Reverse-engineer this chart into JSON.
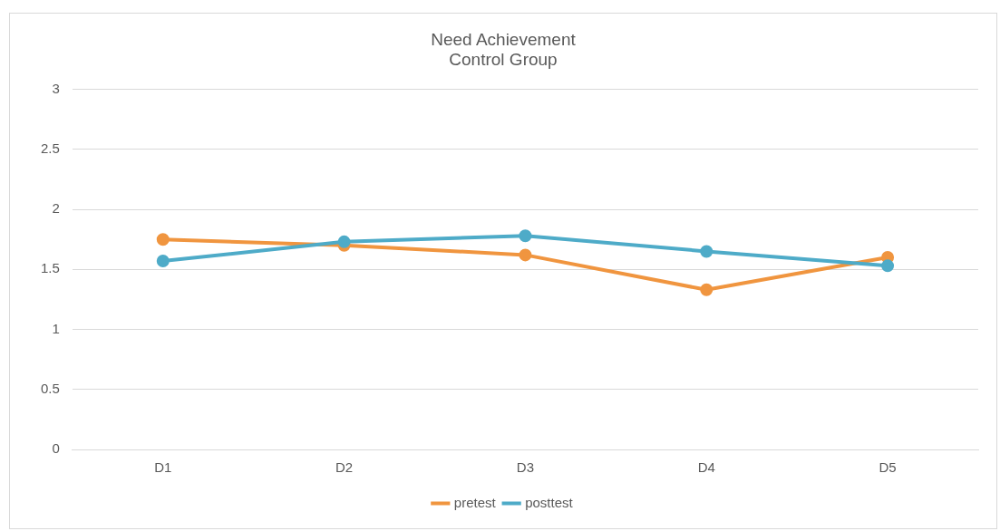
{
  "chart_data": {
    "type": "line",
    "title": [
      "Need Achievement",
      "Control Group"
    ],
    "categories": [
      "D1",
      "D2",
      "D3",
      "D4",
      "D5"
    ],
    "series": [
      {
        "name": "pretest",
        "color": "#f0953f",
        "values": [
          1.75,
          1.7,
          1.62,
          1.33,
          1.6
        ]
      },
      {
        "name": "posttest",
        "color": "#4eabc8",
        "values": [
          1.57,
          1.73,
          1.78,
          1.65,
          1.53
        ]
      }
    ],
    "ylim": [
      0,
      3
    ],
    "yticks": [
      0,
      0.5,
      1,
      1.5,
      2,
      2.5,
      3
    ],
    "grid": "y",
    "legend": "bottom",
    "marker": "circle",
    "line_style": "solid"
  }
}
